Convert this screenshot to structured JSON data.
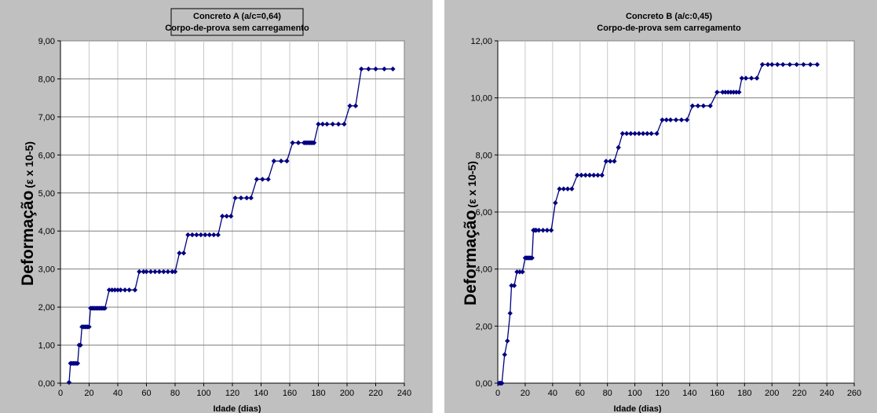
{
  "chart_data": [
    {
      "type": "line",
      "title": "Concreto A (a/c=0,64)",
      "subtitle": "Corpo-de-prova sem carregamento",
      "xlabel": "Idade (dias)",
      "ylabel_main": "Deformação",
      "ylabel_unit": "(ε x 10-5)",
      "xlim": [
        0,
        240
      ],
      "ylim": [
        0,
        9
      ],
      "xticks": [
        "0",
        "20",
        "40",
        "60",
        "80",
        "100",
        "120",
        "140",
        "160",
        "180",
        "200",
        "220",
        "240"
      ],
      "yticks": [
        "0,00",
        "1,00",
        "2,00",
        "3,00",
        "4,00",
        "5,00",
        "6,00",
        "7,00",
        "8,00",
        "9,00"
      ],
      "grid": true,
      "title_boxed": true,
      "series_color": "#000080",
      "series": [
        {
          "x": [
            6,
            7,
            8,
            9,
            10,
            11,
            12,
            13,
            14,
            15,
            16,
            17,
            18,
            19,
            20,
            21,
            22,
            23,
            24,
            25,
            26,
            27,
            28,
            29,
            30,
            31,
            34,
            36,
            38,
            40,
            42,
            45,
            48,
            52,
            55,
            58,
            60,
            63,
            66,
            69,
            72,
            75,
            78,
            80,
            83,
            86,
            89,
            92,
            95,
            98,
            101,
            104,
            107,
            110,
            113,
            116,
            119,
            122,
            126,
            130,
            133,
            137,
            141,
            145,
            149,
            154,
            158,
            162,
            166,
            170,
            171,
            172,
            173,
            174,
            175,
            176,
            177,
            180,
            183,
            186,
            190,
            194,
            198,
            202,
            206,
            210,
            215,
            220,
            226,
            232
          ],
          "y": [
            0.02,
            0.52,
            0.52,
            0.52,
            0.52,
            0.52,
            0.52,
            1.0,
            1.0,
            1.48,
            1.48,
            1.48,
            1.48,
            1.48,
            1.48,
            1.97,
            1.97,
            1.97,
            1.97,
            1.97,
            1.97,
            1.97,
            1.97,
            1.97,
            1.97,
            1.97,
            2.45,
            2.45,
            2.45,
            2.45,
            2.45,
            2.45,
            2.45,
            2.45,
            2.93,
            2.93,
            2.93,
            2.93,
            2.93,
            2.93,
            2.93,
            2.93,
            2.93,
            2.93,
            3.42,
            3.42,
            3.9,
            3.9,
            3.9,
            3.9,
            3.9,
            3.9,
            3.9,
            3.9,
            4.39,
            4.39,
            4.39,
            4.87,
            4.87,
            4.87,
            4.87,
            5.36,
            5.36,
            5.36,
            5.84,
            5.84,
            5.84,
            6.32,
            6.32,
            6.32,
            6.32,
            6.32,
            6.32,
            6.32,
            6.32,
            6.32,
            6.32,
            6.81,
            6.81,
            6.81,
            6.81,
            6.81,
            6.81,
            7.29,
            7.29,
            8.26,
            8.26,
            8.26,
            8.26,
            8.26
          ]
        }
      ]
    },
    {
      "type": "line",
      "title": "Concreto B (a/c:0,45)",
      "subtitle": "Corpo-de-prova sem carregamento",
      "xlabel": "Idade (dias)",
      "ylabel_main": "Deformação",
      "ylabel_unit": "(ε x 10-5)",
      "xlim": [
        0,
        260
      ],
      "ylim": [
        0,
        12
      ],
      "xticks": [
        "0",
        "20",
        "40",
        "60",
        "80",
        "100",
        "120",
        "140",
        "160",
        "180",
        "200",
        "220",
        "240",
        "260"
      ],
      "yticks": [
        "0,00",
        "2,00",
        "4,00",
        "6,00",
        "8,00",
        "10,00",
        "12,00"
      ],
      "grid": true,
      "title_boxed": false,
      "series_color": "#000080",
      "series": [
        {
          "x": [
            1,
            2,
            3,
            5,
            7,
            9,
            10,
            12,
            14,
            16,
            18,
            20,
            21,
            22,
            23,
            24,
            25,
            26,
            27,
            28,
            30,
            33,
            36,
            39,
            42,
            45,
            48,
            51,
            54,
            58,
            61,
            64,
            67,
            70,
            73,
            76,
            79,
            82,
            85,
            88,
            91,
            94,
            97,
            100,
            103,
            106,
            109,
            112,
            116,
            120,
            123,
            126,
            130,
            134,
            138,
            142,
            146,
            150,
            155,
            160,
            164,
            166,
            168,
            170,
            172,
            174,
            176,
            178,
            181,
            185,
            189,
            193,
            197,
            200,
            204,
            208,
            213,
            218,
            223,
            228,
            233
          ],
          "y": [
            0.0,
            0.0,
            0.0,
            1.0,
            1.48,
            2.45,
            3.42,
            3.42,
            3.9,
            3.9,
            3.9,
            4.39,
            4.39,
            4.39,
            4.39,
            4.39,
            4.39,
            5.36,
            5.36,
            5.36,
            5.36,
            5.36,
            5.36,
            5.36,
            6.32,
            6.81,
            6.81,
            6.81,
            6.81,
            7.29,
            7.29,
            7.29,
            7.29,
            7.29,
            7.29,
            7.29,
            7.78,
            7.78,
            7.78,
            8.26,
            8.75,
            8.75,
            8.75,
            8.75,
            8.75,
            8.75,
            8.75,
            8.75,
            8.75,
            9.23,
            9.23,
            9.23,
            9.23,
            9.23,
            9.23,
            9.72,
            9.72,
            9.72,
            9.72,
            10.2,
            10.2,
            10.2,
            10.2,
            10.2,
            10.2,
            10.2,
            10.2,
            10.69,
            10.69,
            10.69,
            10.69,
            11.17,
            11.17,
            11.17,
            11.17,
            11.17,
            11.17,
            11.17,
            11.17,
            11.17,
            11.17
          ]
        }
      ]
    }
  ]
}
